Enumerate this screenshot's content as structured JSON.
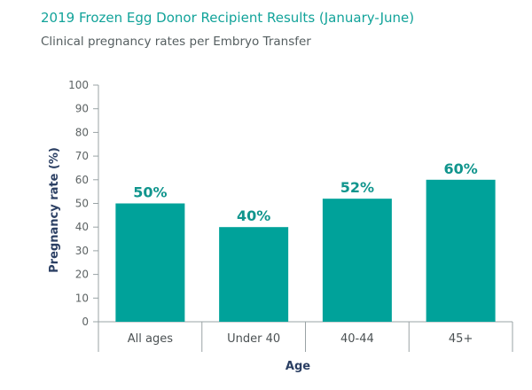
{
  "header": {
    "title": "2019 Frozen Egg Donor Recipient Results (January-June)",
    "subtitle": "Clinical pregnancy rates per Embryo Transfer"
  },
  "colors": {
    "bar": "#00a29a",
    "value_label": "#10958d",
    "title": "#12a39a",
    "axis": "#9aa3a5"
  },
  "chart_data": {
    "type": "bar",
    "categories": [
      "All ages",
      "Under 40",
      "40-44",
      "45+"
    ],
    "values": [
      50,
      40,
      52,
      60
    ],
    "value_labels": [
      "50%",
      "40%",
      "52%",
      "60%"
    ],
    "title": "2019 Frozen Egg Donor Recipient Results (January-June)",
    "subtitle": "Clinical pregnancy rates per Embryo Transfer",
    "xlabel": "Age",
    "ylabel": "Pregnancy rate (%)",
    "ylim": [
      0,
      100
    ],
    "yticks": [
      0,
      10,
      20,
      30,
      40,
      50,
      60,
      70,
      80,
      90,
      100
    ],
    "grid": false,
    "legend": "none"
  }
}
